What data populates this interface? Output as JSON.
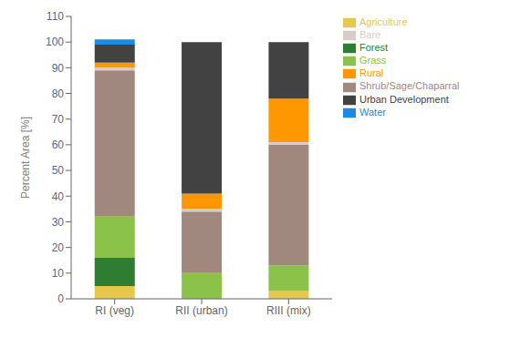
{
  "chart_data": {
    "type": "bar",
    "stacked": true,
    "grid": false,
    "legend": "right",
    "ylabel": "Percent Area [%]",
    "categories": [
      "RI (veg)",
      "RII (urban)",
      "RIII (mix)"
    ],
    "ylim": [
      0,
      110
    ],
    "yticks": [
      0,
      10,
      20,
      30,
      40,
      50,
      60,
      70,
      80,
      90,
      100,
      110
    ],
    "series": [
      {
        "name": "Agriculture",
        "color": "#e6c84f",
        "values": [
          5,
          0,
          3
        ]
      },
      {
        "name": "Forest",
        "color": "#2e7d32",
        "values": [
          11,
          0,
          0
        ]
      },
      {
        "name": "Grass",
        "color": "#8bc34a",
        "values": [
          16,
          10,
          10
        ]
      },
      {
        "name": "Shrub/Sage/Chaparral",
        "color": "#a1887f",
        "values": [
          57,
          24,
          47
        ]
      },
      {
        "name": "Bare",
        "color": "#d7ccc8",
        "values": [
          1,
          1,
          1
        ]
      },
      {
        "name": "Rural",
        "color": "#ff9800",
        "values": [
          2,
          6,
          17
        ]
      },
      {
        "name": "Urban Development",
        "color": "#424242",
        "values": [
          7,
          59,
          22
        ]
      },
      {
        "name": "Water",
        "color": "#1e88e5",
        "values": [
          2,
          0,
          0
        ]
      }
    ]
  }
}
